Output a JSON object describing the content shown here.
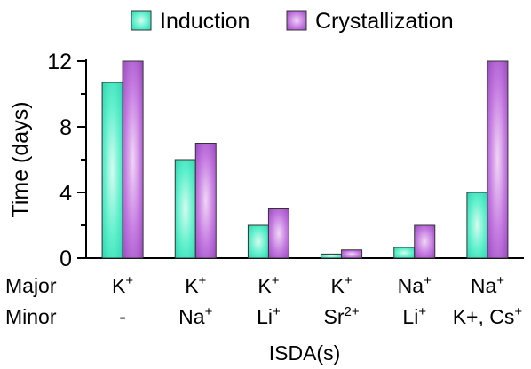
{
  "chart_data": {
    "type": "bar",
    "ylabel": "Time (days)",
    "xlabel": "ISDA(s)",
    "ylim": [
      0,
      12
    ],
    "yticks": [
      0,
      4,
      8,
      12
    ],
    "row_labels": [
      "Major",
      "Minor"
    ],
    "categories": [
      {
        "major": "K",
        "major_sup": "+",
        "minor": "-",
        "minor_sup": ""
      },
      {
        "major": "K",
        "major_sup": "+",
        "minor": "Na",
        "minor_sup": "+"
      },
      {
        "major": "K",
        "major_sup": "+",
        "minor": "Li",
        "minor_sup": "+"
      },
      {
        "major": "K",
        "major_sup": "+",
        "minor": "Sr",
        "minor_sup": "2+"
      },
      {
        "major": "Na",
        "major_sup": "+",
        "minor": "Li",
        "minor_sup": "+"
      },
      {
        "major": "Na",
        "major_sup": "+",
        "minor": "K+, Cs",
        "minor_sup": "+"
      }
    ],
    "series": [
      {
        "name": "Induction",
        "values": [
          10.7,
          6.0,
          2.0,
          0.25,
          0.65,
          4.0
        ],
        "color": "#3ee3c0"
      },
      {
        "name": "Crystallization",
        "values": [
          12.0,
          7.0,
          3.0,
          0.5,
          2.0,
          12.0
        ],
        "color": "#b05ad0"
      }
    ],
    "legend": "top"
  }
}
